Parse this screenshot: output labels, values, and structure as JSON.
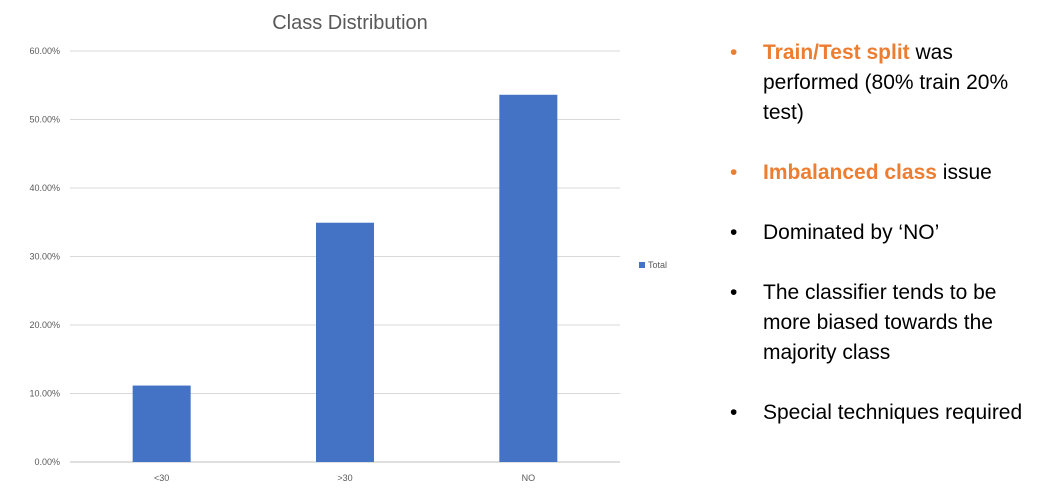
{
  "chart_data": {
    "type": "bar",
    "title": "Class Distribution",
    "categories": [
      "<30",
      ">30",
      "NO"
    ],
    "series": [
      {
        "name": "Total",
        "values": [
          0.1116,
          0.3493,
          0.5361
        ]
      }
    ],
    "ylim": [
      0,
      0.6
    ],
    "yticks": [
      "0.00%",
      "10.00%",
      "20.00%",
      "30.00%",
      "40.00%",
      "50.00%",
      "60.00%"
    ],
    "ytick_values": [
      0,
      0.1,
      0.2,
      0.3,
      0.4,
      0.5,
      0.6
    ],
    "grid": true,
    "legend_position": "right",
    "bar_color": "#4472C4"
  },
  "bullets": [
    {
      "highlight": "Train/Test split",
      "text": " was performed (80% train 20% test)",
      "bullet_color": "#ED7D31"
    },
    {
      "highlight": "Imbalanced class",
      "text": " issue",
      "bullet_color": "#ED7D31"
    },
    {
      "highlight": "",
      "text": "Dominated by ‘NO’",
      "bullet_color": "#000000"
    },
    {
      "highlight": "",
      "text": "The classifier tends to be more biased towards the majority class",
      "bullet_color": "#000000"
    },
    {
      "highlight": "",
      "text": "Special techniques required",
      "bullet_color": "#000000"
    }
  ],
  "bullet_glyph": "•"
}
